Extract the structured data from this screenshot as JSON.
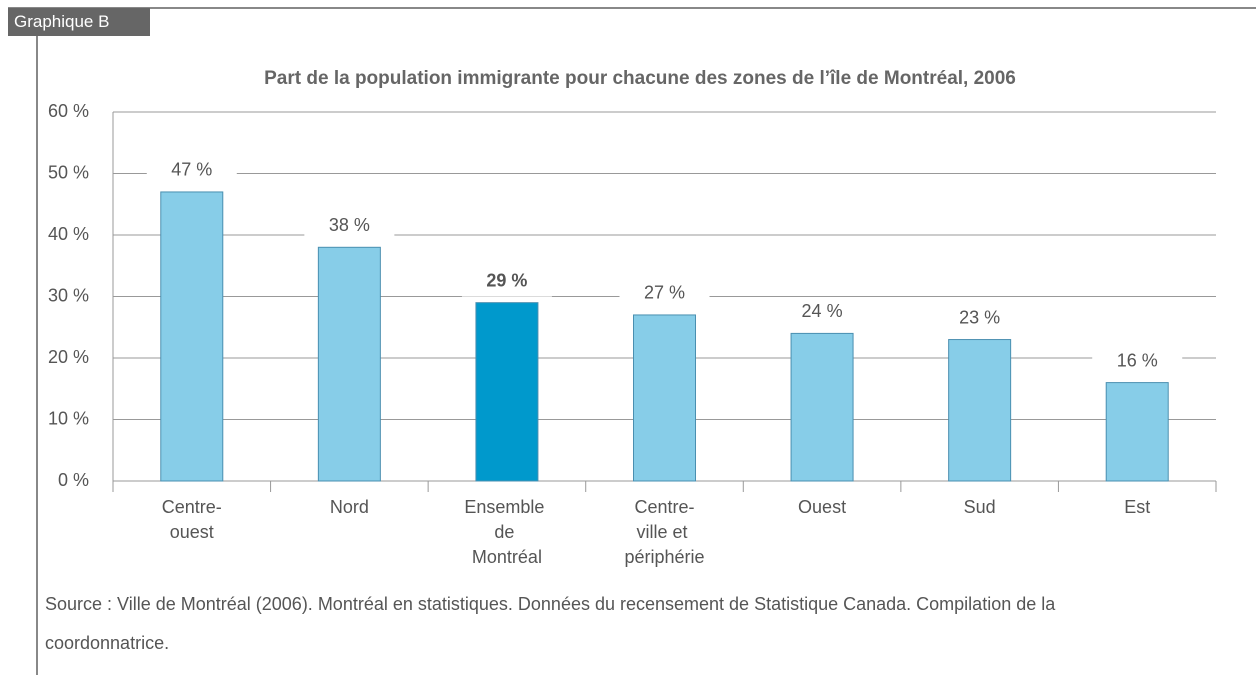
{
  "tab": "Graphique B",
  "chart_data": {
    "type": "bar",
    "title": "Part de la population immigrante pour chacune des zones de l’île de Montréal, 2006",
    "categories": [
      "Centre-ouest",
      "Nord",
      "Ensemble de Montréal",
      "Centre-ville et périphérie",
      "Ouest",
      "Sud",
      "Est"
    ],
    "values": [
      47,
      38,
      29,
      27,
      24,
      23,
      16
    ],
    "value_labels": [
      "47 %",
      "38 %",
      "29 %",
      "27 %",
      "24 %",
      "23 %",
      "16 %"
    ],
    "colors": [
      "#87cde8",
      "#87cde8",
      "#0099cc",
      "#87cde8",
      "#87cde8",
      "#87cde8",
      "#87cde8"
    ],
    "highlight_index": 2,
    "ylim": [
      0,
      60
    ],
    "yticks": [
      {
        "value": 0,
        "label": "0 %"
      },
      {
        "value": 10,
        "label": "10 %"
      },
      {
        "value": 20,
        "label": "20 %"
      },
      {
        "value": 30,
        "label": "30 %"
      },
      {
        "value": 40,
        "label": "40 %"
      },
      {
        "value": 50,
        "label": "50 %"
      },
      {
        "value": 60,
        "label": "60 %"
      }
    ],
    "grid": true
  },
  "source": "Source : Ville de Montréal (2006). Montréal en statistiques. Données du recensement de Statistique Canada. Compilation de la coordonnatrice."
}
